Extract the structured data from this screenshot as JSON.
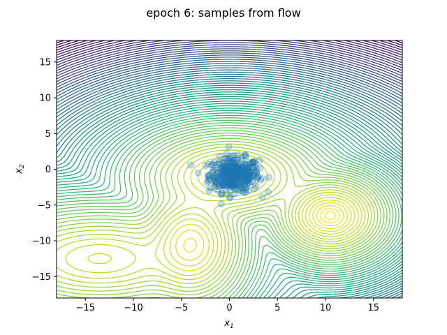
{
  "chart_data": {
    "type": "scatter",
    "title": "epoch 6: samples from flow",
    "xlabel": "x",
    "xlabel_sub": "1",
    "ylabel": "x",
    "ylabel_sub": "2",
    "xlim": [
      -18,
      18
    ],
    "ylim": [
      -18,
      18
    ],
    "xticks": [
      -15,
      -10,
      -5,
      0,
      5,
      10,
      15
    ],
    "yticks": [
      -15,
      -10,
      -5,
      0,
      5,
      10,
      15
    ],
    "grid": false,
    "background": "contour",
    "colormap": "viridis",
    "contour_modes": [
      {
        "x": 0,
        "y": -1,
        "sx": 3.2,
        "sy": 2.2
      },
      {
        "x": 10.5,
        "y": -6.5,
        "sx": 2.0,
        "sy": 2.0
      },
      {
        "x": -4,
        "y": -10.5,
        "sx": 2.0,
        "sy": 3.0
      },
      {
        "x": -13.5,
        "y": -12.5,
        "sx": 4.5,
        "sy": 2.5
      }
    ],
    "samples": {
      "count": 400,
      "center": [
        0.5,
        -0.8
      ],
      "spread": [
        1.3,
        1.2
      ],
      "color": "#1f77b4",
      "alpha": 0.25
    }
  }
}
